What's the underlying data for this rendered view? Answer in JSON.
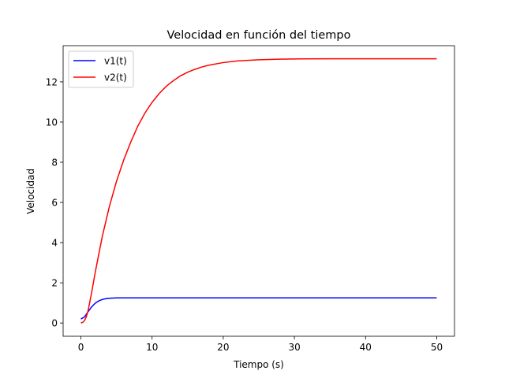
{
  "chart_data": {
    "type": "line",
    "title": "Velocidad en función del tiempo",
    "xlabel": "Tiempo (s)",
    "ylabel": "Velocidad",
    "xlim": [
      -2.5,
      52.5
    ],
    "ylim": [
      -0.66,
      13.8
    ],
    "xticks": [
      0,
      10,
      20,
      30,
      40,
      50
    ],
    "yticks": [
      0,
      2,
      4,
      6,
      8,
      10,
      12
    ],
    "grid": false,
    "legend_position": "top-left",
    "series": [
      {
        "name": "v1(t)",
        "color": "#0000ff",
        "x": [
          0,
          0.5,
          1,
          1.5,
          2,
          2.5,
          3,
          3.5,
          4,
          4.5,
          5,
          6,
          7,
          8,
          10,
          15,
          20,
          30,
          40,
          50
        ],
        "y": [
          0.2,
          0.3,
          0.56,
          0.8,
          0.98,
          1.1,
          1.17,
          1.21,
          1.23,
          1.24,
          1.25,
          1.25,
          1.25,
          1.25,
          1.25,
          1.25,
          1.25,
          1.25,
          1.25,
          1.25
        ]
      },
      {
        "name": "v2(t)",
        "color": "#ff0000",
        "x": [
          0,
          0.25,
          0.5,
          0.75,
          1,
          1.5,
          2,
          3,
          4,
          5,
          6,
          7,
          8,
          9,
          10,
          11,
          12,
          13,
          14,
          15,
          16,
          17,
          18,
          20,
          22,
          25,
          28,
          30,
          35,
          40,
          45,
          50
        ],
        "y": [
          0,
          0.03,
          0.12,
          0.3,
          0.6,
          1.5,
          2.5,
          4.3,
          5.8,
          7.05,
          8.1,
          9.0,
          9.8,
          10.45,
          10.98,
          11.42,
          11.78,
          12.06,
          12.3,
          12.48,
          12.62,
          12.74,
          12.83,
          12.96,
          13.04,
          13.1,
          13.13,
          13.14,
          13.15,
          13.15,
          13.15,
          13.15
        ]
      }
    ]
  },
  "colors": {
    "v1": "#0000ff",
    "v2": "#ff0000"
  }
}
